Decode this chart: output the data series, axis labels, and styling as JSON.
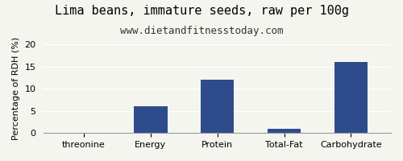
{
  "title": "Lima beans, immature seeds, raw per 100g",
  "subtitle": "www.dietandfitnesstoday.com",
  "categories": [
    "threonine",
    "Energy",
    "Protein",
    "Total-Fat",
    "Carbohydrate"
  ],
  "values": [
    0,
    6.1,
    12.1,
    1.0,
    16.1
  ],
  "bar_color": "#2e4b8b",
  "ylabel": "Percentage of RDH (%)",
  "ylim": [
    0,
    20
  ],
  "yticks": [
    0,
    5,
    10,
    15,
    20
  ],
  "background_color": "#f5f5f0",
  "title_fontsize": 11,
  "subtitle_fontsize": 9,
  "ylabel_fontsize": 8,
  "xlabel_fontsize": 8
}
